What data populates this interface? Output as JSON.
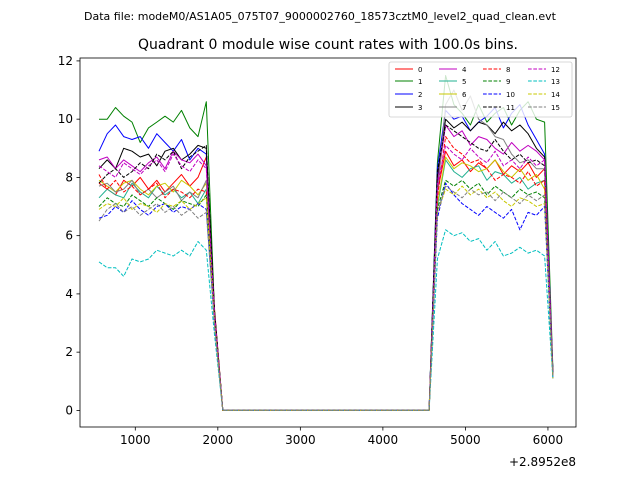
{
  "suptitle": "Data file: modeM0/AS1A05_075T07_9000002760_18573cztM0_level2_quad_clean.evt",
  "chart_data": {
    "type": "line",
    "title": "Quadrant 0 module wise count rates with 100.0s bins.",
    "xlabel": "",
    "ylabel": "",
    "x_offset_label": "+2.8952e8",
    "xlim": [
      330,
      6340
    ],
    "ylim": [
      -0.57,
      12.1
    ],
    "xticks": [
      1000,
      2000,
      3000,
      4000,
      5000,
      6000
    ],
    "xtick_labels": [
      "1000",
      "2000",
      "3000",
      "4000",
      "5000",
      "6000"
    ],
    "yticks": [
      0,
      2,
      4,
      6,
      8,
      10,
      12
    ],
    "ytick_labels": [
      "0",
      "2",
      "4",
      "6",
      "8",
      "10",
      "12"
    ],
    "grid": false,
    "legend_position": "top-right",
    "x": [
      560,
      660,
      760,
      860,
      960,
      1060,
      1160,
      1260,
      1360,
      1460,
      1560,
      1660,
      1760,
      1860,
      1960,
      2060,
      2160,
      2260,
      2360,
      2460,
      2560,
      2660,
      2760,
      2860,
      2960,
      3060,
      3160,
      3260,
      3360,
      3460,
      3560,
      3660,
      3760,
      3860,
      3960,
      4060,
      4160,
      4260,
      4360,
      4460,
      4560,
      4660,
      4760,
      4860,
      4960,
      5060,
      5160,
      5260,
      5360,
      5460,
      5560,
      5660,
      5760,
      5860,
      5960,
      6060
    ],
    "series": [
      {
        "name": "0",
        "color": "#ff0000",
        "dash": false,
        "values": [
          7.8,
          7.6,
          7.4,
          7.9,
          7.7,
          8.0,
          7.6,
          7.9,
          7.5,
          7.8,
          8.1,
          7.7,
          8.0,
          8.7,
          3.5,
          0,
          0,
          0,
          0,
          0,
          0,
          0,
          0,
          0,
          0,
          0,
          0,
          0,
          0,
          0,
          0,
          0,
          0,
          0,
          0,
          0,
          0,
          0,
          0,
          0,
          0,
          7.5,
          8.9,
          8.4,
          8.6,
          8.2,
          8.5,
          8.3,
          8.6,
          8.1,
          8.4,
          8.2,
          8.5,
          8.0,
          8.3,
          1.3
        ]
      },
      {
        "name": "1",
        "color": "#008000",
        "dash": false,
        "values": [
          10.0,
          10.0,
          10.4,
          10.1,
          9.9,
          9.2,
          9.7,
          9.9,
          10.1,
          9.9,
          10.3,
          9.7,
          9.4,
          10.6,
          3.4,
          0,
          0,
          0,
          0,
          0,
          0,
          0,
          0,
          0,
          0,
          0,
          0,
          0,
          0,
          0,
          0,
          0,
          0,
          0,
          0,
          0,
          0,
          0,
          0,
          0,
          0,
          8.5,
          11.5,
          10.5,
          10.2,
          9.8,
          10.5,
          9.9,
          10.2,
          10.4,
          9.8,
          10.3,
          10.6,
          10.0,
          9.9,
          1.4
        ]
      },
      {
        "name": "2",
        "color": "#0000ff",
        "dash": false,
        "values": [
          8.9,
          9.5,
          9.8,
          9.4,
          9.3,
          9.4,
          9.0,
          9.5,
          9.2,
          8.9,
          9.3,
          8.6,
          9.0,
          8.8,
          3.3,
          0,
          0,
          0,
          0,
          0,
          0,
          0,
          0,
          0,
          0,
          0,
          0,
          0,
          0,
          0,
          0,
          0,
          0,
          0,
          0,
          0,
          0,
          0,
          0,
          0,
          0,
          8.3,
          10.3,
          10.0,
          10.1,
          9.6,
          9.9,
          10.1,
          10.4,
          9.7,
          10.2,
          10.5,
          9.8,
          9.3,
          8.8,
          1.3
        ]
      },
      {
        "name": "3",
        "color": "#000000",
        "dash": false,
        "values": [
          8.3,
          8.6,
          8.3,
          9.0,
          8.9,
          8.7,
          8.8,
          8.4,
          8.9,
          9.0,
          8.6,
          8.8,
          9.1,
          9.0,
          3.4,
          0,
          0,
          0,
          0,
          0,
          0,
          0,
          0,
          0,
          0,
          0,
          0,
          0,
          0,
          0,
          0,
          0,
          0,
          0,
          0,
          0,
          0,
          0,
          0,
          0,
          0,
          8.0,
          10.0,
          9.7,
          9.9,
          9.6,
          9.9,
          9.8,
          9.5,
          9.9,
          9.6,
          9.8,
          9.5,
          9.0,
          8.7,
          1.2
        ]
      },
      {
        "name": "4",
        "color": "#c000c0",
        "dash": false,
        "values": [
          8.6,
          8.7,
          8.3,
          8.6,
          8.4,
          8.2,
          8.5,
          8.7,
          8.3,
          8.9,
          8.6,
          8.5,
          8.8,
          8.4,
          3.3,
          0,
          0,
          0,
          0,
          0,
          0,
          0,
          0,
          0,
          0,
          0,
          0,
          0,
          0,
          0,
          0,
          0,
          0,
          0,
          0,
          0,
          0,
          0,
          0,
          0,
          0,
          7.8,
          9.8,
          9.4,
          9.6,
          9.1,
          9.4,
          9.3,
          9.0,
          8.8,
          9.2,
          8.9,
          9.1,
          8.9,
          8.6,
          1.2
        ]
      },
      {
        "name": "5",
        "color": "#20b090",
        "dash": false,
        "values": [
          7.3,
          7.6,
          7.4,
          7.3,
          7.8,
          7.5,
          7.3,
          7.7,
          7.4,
          7.6,
          7.3,
          7.5,
          7.1,
          7.6,
          3.2,
          0,
          0,
          0,
          0,
          0,
          0,
          0,
          0,
          0,
          0,
          0,
          0,
          0,
          0,
          0,
          0,
          0,
          0,
          0,
          0,
          0,
          0,
          0,
          0,
          0,
          0,
          7.0,
          8.6,
          8.2,
          8.0,
          8.3,
          8.4,
          7.9,
          8.2,
          8.1,
          7.8,
          8.0,
          7.6,
          7.8,
          7.9,
          1.2
        ]
      },
      {
        "name": "6",
        "color": "#c8c800",
        "dash": false,
        "values": [
          7.9,
          7.7,
          7.5,
          7.8,
          7.9,
          7.6,
          7.4,
          7.7,
          7.8,
          7.5,
          7.9,
          7.7,
          7.4,
          7.8,
          3.2,
          0,
          0,
          0,
          0,
          0,
          0,
          0,
          0,
          0,
          0,
          0,
          0,
          0,
          0,
          0,
          0,
          0,
          0,
          0,
          0,
          0,
          0,
          0,
          0,
          0,
          0,
          7.1,
          8.7,
          8.3,
          8.5,
          8.4,
          8.2,
          8.3,
          8.6,
          8.2,
          8.0,
          8.3,
          7.9,
          8.1,
          7.6,
          1.2
        ]
      },
      {
        "name": "7",
        "color": "#808080",
        "dash": false,
        "values": [
          7.7,
          7.8,
          7.5,
          7.6,
          7.9,
          7.4,
          7.6,
          7.3,
          7.5,
          7.7,
          7.2,
          7.5,
          7.3,
          7.9,
          3.2,
          0,
          0,
          0,
          0,
          0,
          0,
          0,
          0,
          0,
          0,
          0,
          0,
          0,
          0,
          0,
          0,
          0,
          0,
          0,
          0,
          0,
          0,
          0,
          0,
          0,
          0,
          7.4,
          10.5,
          11.0,
          10.3,
          10.8,
          10.0,
          9.8,
          9.4,
          9.3,
          8.8,
          8.5,
          8.6,
          8.3,
          8.3,
          1.3
        ]
      },
      {
        "name": "8",
        "color": "#ff0000",
        "dash": true,
        "values": [
          8.1,
          7.6,
          7.9,
          7.5,
          7.7,
          7.4,
          7.6,
          7.8,
          7.3,
          7.6,
          7.5,
          7.3,
          7.6,
          7.5,
          3.2,
          0,
          0,
          0,
          0,
          0,
          0,
          0,
          0,
          0,
          0,
          0,
          0,
          0,
          0,
          0,
          0,
          0,
          0,
          0,
          0,
          0,
          0,
          0,
          0,
          0,
          0,
          7.3,
          9.4,
          9.0,
          8.8,
          8.5,
          8.6,
          8.3,
          7.9,
          8.1,
          8.0,
          7.8,
          8.2,
          7.7,
          7.9,
          1.2
        ]
      },
      {
        "name": "9",
        "color": "#008000",
        "dash": true,
        "values": [
          7.0,
          7.3,
          7.1,
          7.0,
          7.4,
          7.2,
          7.0,
          7.3,
          7.1,
          6.9,
          7.2,
          7.1,
          7.0,
          7.4,
          3.1,
          0,
          0,
          0,
          0,
          0,
          0,
          0,
          0,
          0,
          0,
          0,
          0,
          0,
          0,
          0,
          0,
          0,
          0,
          0,
          0,
          0,
          0,
          0,
          0,
          0,
          0,
          6.9,
          7.9,
          7.7,
          7.9,
          7.6,
          7.8,
          7.4,
          7.7,
          7.5,
          7.3,
          7.6,
          7.4,
          7.5,
          7.3,
          1.2
        ]
      },
      {
        "name": "10",
        "color": "#0000ff",
        "dash": true,
        "values": [
          6.6,
          6.7,
          7.0,
          6.8,
          7.2,
          6.9,
          6.7,
          7.0,
          7.1,
          6.8,
          7.0,
          6.9,
          7.1,
          6.9,
          3.0,
          0,
          0,
          0,
          0,
          0,
          0,
          0,
          0,
          0,
          0,
          0,
          0,
          0,
          0,
          0,
          0,
          0,
          0,
          0,
          0,
          0,
          0,
          0,
          0,
          0,
          0,
          6.6,
          7.8,
          7.4,
          7.1,
          6.9,
          6.7,
          7.0,
          6.8,
          6.6,
          6.9,
          6.2,
          6.8,
          6.7,
          7.0,
          1.1
        ]
      },
      {
        "name": "11",
        "color": "#000000",
        "dash": true,
        "values": [
          7.8,
          8.1,
          8.3,
          8.0,
          8.2,
          8.5,
          8.3,
          8.8,
          8.6,
          8.9,
          8.3,
          8.7,
          8.9,
          9.1,
          3.4,
          0,
          0,
          0,
          0,
          0,
          0,
          0,
          0,
          0,
          0,
          0,
          0,
          0,
          0,
          0,
          0,
          0,
          0,
          0,
          0,
          0,
          0,
          0,
          0,
          0,
          0,
          8.2,
          9.8,
          9.6,
          9.4,
          9.2,
          9.0,
          8.9,
          9.3,
          8.9,
          8.6,
          8.8,
          8.5,
          8.6,
          8.4,
          1.3
        ]
      },
      {
        "name": "12",
        "color": "#c000c0",
        "dash": true,
        "values": [
          8.4,
          8.2,
          8.0,
          8.5,
          8.3,
          8.1,
          8.4,
          8.6,
          8.2,
          8.8,
          8.4,
          8.2,
          8.6,
          8.3,
          3.3,
          0,
          0,
          0,
          0,
          0,
          0,
          0,
          0,
          0,
          0,
          0,
          0,
          0,
          0,
          0,
          0,
          0,
          0,
          0,
          0,
          0,
          0,
          0,
          0,
          0,
          0,
          7.7,
          9.1,
          8.8,
          8.6,
          9.0,
          8.7,
          8.5,
          8.9,
          8.4,
          8.6,
          8.3,
          8.7,
          8.4,
          8.6,
          1.2
        ]
      },
      {
        "name": "13",
        "color": "#00bfbf",
        "dash": true,
        "values": [
          5.1,
          4.9,
          4.9,
          4.6,
          5.2,
          5.1,
          5.2,
          5.5,
          5.4,
          5.3,
          5.5,
          5.3,
          5.8,
          5.5,
          2.6,
          0,
          0,
          0,
          0,
          0,
          0,
          0,
          0,
          0,
          0,
          0,
          0,
          0,
          0,
          0,
          0,
          0,
          0,
          0,
          0,
          0,
          0,
          0,
          0,
          0,
          0,
          5.2,
          6.2,
          6.0,
          6.1,
          5.8,
          5.9,
          5.5,
          5.8,
          5.3,
          5.4,
          5.6,
          5.4,
          5.5,
          5.3,
          1.1
        ]
      },
      {
        "name": "14",
        "color": "#c8c800",
        "dash": true,
        "values": [
          6.9,
          7.1,
          7.0,
          7.3,
          6.9,
          7.1,
          7.0,
          6.8,
          7.1,
          7.0,
          7.2,
          6.9,
          7.1,
          7.3,
          3.0,
          0,
          0,
          0,
          0,
          0,
          0,
          0,
          0,
          0,
          0,
          0,
          0,
          0,
          0,
          0,
          0,
          0,
          0,
          0,
          0,
          0,
          0,
          0,
          0,
          0,
          0,
          6.8,
          7.6,
          7.4,
          7.7,
          7.4,
          7.6,
          7.3,
          7.5,
          7.2,
          7.0,
          7.3,
          7.2,
          7.0,
          7.1,
          1.1
        ]
      },
      {
        "name": "15",
        "color": "#808080",
        "dash": true,
        "values": [
          6.5,
          6.9,
          7.1,
          6.8,
          7.0,
          6.7,
          6.9,
          7.1,
          6.8,
          7.0,
          6.7,
          6.9,
          6.6,
          6.8,
          2.9,
          0,
          0,
          0,
          0,
          0,
          0,
          0,
          0,
          0,
          0,
          0,
          0,
          0,
          0,
          0,
          0,
          0,
          0,
          0,
          0,
          0,
          0,
          0,
          0,
          0,
          0,
          6.8,
          7.7,
          7.5,
          7.3,
          7.6,
          7.4,
          7.5,
          7.2,
          7.5,
          7.3,
          7.1,
          7.4,
          7.2,
          7.4,
          1.2
        ]
      }
    ]
  }
}
